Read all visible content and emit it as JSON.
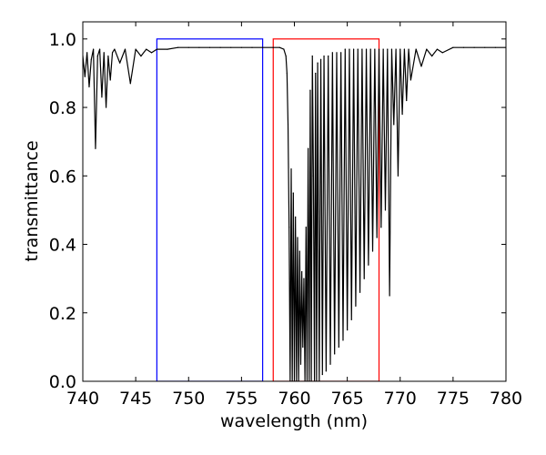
{
  "chart_data": {
    "type": "line",
    "title": "",
    "xlabel": "wavelength (nm)",
    "ylabel": "transmittance",
    "xlim": [
      740,
      780
    ],
    "ylim": [
      0.0,
      1.05
    ],
    "grid": false,
    "x_ticks": [
      740,
      745,
      750,
      755,
      760,
      765,
      770,
      775,
      780
    ],
    "x_tick_labels": [
      "740",
      "745",
      "750",
      "755",
      "760",
      "765",
      "770",
      "775",
      "780"
    ],
    "y_ticks": [
      0.0,
      0.2,
      0.4,
      0.6,
      0.8,
      1.0
    ],
    "y_tick_labels": [
      "0.0",
      "0.2",
      "0.4",
      "0.6",
      "0.8",
      "1.0"
    ],
    "series": [
      {
        "color": "#000000",
        "continuum": 0.975,
        "x": [
          740.0,
          740.2,
          740.4,
          740.6,
          740.8,
          741.0,
          741.2,
          741.4,
          741.6,
          741.8,
          742.0,
          742.2,
          742.4,
          742.6,
          742.8,
          743.0,
          743.5,
          744.0,
          744.5,
          745.0,
          745.5,
          746.0,
          746.5,
          747.0,
          748.0,
          749.0,
          750.0,
          751.0,
          752.0,
          753.0,
          754.0,
          755.0,
          756.0,
          757.0,
          758.0,
          758.6,
          759.0,
          759.2,
          759.3,
          759.4,
          759.5,
          759.6,
          759.7,
          759.8,
          759.9,
          760.0,
          760.1,
          760.2,
          760.3,
          760.4,
          760.5,
          760.6,
          760.7,
          760.8,
          760.9,
          761.0,
          761.1,
          761.2,
          761.3,
          761.4,
          761.5,
          761.6,
          761.7,
          761.8,
          761.9,
          762.0,
          762.1,
          762.2,
          762.35,
          762.5,
          762.65,
          762.8,
          763.0,
          763.2,
          763.4,
          763.6,
          763.8,
          764.0,
          764.2,
          764.4,
          764.6,
          764.8,
          765.0,
          765.2,
          765.4,
          765.6,
          765.8,
          766.0,
          766.2,
          766.4,
          766.6,
          766.8,
          767.0,
          767.2,
          767.4,
          767.6,
          767.8,
          768.0,
          768.2,
          768.4,
          768.6,
          768.8,
          769.0,
          769.2,
          769.4,
          769.6,
          769.8,
          770.0,
          770.2,
          770.4,
          770.6,
          770.8,
          771.0,
          771.5,
          772.0,
          772.5,
          773.0,
          773.5,
          774.0,
          775.0,
          776.0,
          777.0,
          778.0,
          779.0,
          780.0
        ],
        "y": [
          0.95,
          0.89,
          0.96,
          0.86,
          0.94,
          0.97,
          0.68,
          0.95,
          0.97,
          0.83,
          0.96,
          0.8,
          0.95,
          0.88,
          0.96,
          0.97,
          0.93,
          0.97,
          0.87,
          0.97,
          0.95,
          0.97,
          0.96,
          0.97,
          0.97,
          0.975,
          0.975,
          0.975,
          0.975,
          0.975,
          0.975,
          0.975,
          0.975,
          0.975,
          0.975,
          0.975,
          0.97,
          0.95,
          0.9,
          0.75,
          0.45,
          0.0,
          0.62,
          0.0,
          0.55,
          0.0,
          0.48,
          0.0,
          0.42,
          0.0,
          0.38,
          0.05,
          0.32,
          0.1,
          0.3,
          0.0,
          0.45,
          0.0,
          0.68,
          0.0,
          0.85,
          0.0,
          0.95,
          0.6,
          0.0,
          0.9,
          0.0,
          0.93,
          0.0,
          0.94,
          0.02,
          0.95,
          0.03,
          0.95,
          0.05,
          0.96,
          0.08,
          0.96,
          0.1,
          0.96,
          0.12,
          0.97,
          0.15,
          0.97,
          0.18,
          0.97,
          0.22,
          0.97,
          0.26,
          0.97,
          0.3,
          0.97,
          0.34,
          0.97,
          0.38,
          0.97,
          0.42,
          0.97,
          0.45,
          0.97,
          0.5,
          0.97,
          0.25,
          0.97,
          0.75,
          0.97,
          0.6,
          0.97,
          0.78,
          0.97,
          0.82,
          0.97,
          0.88,
          0.97,
          0.92,
          0.97,
          0.95,
          0.97,
          0.96,
          0.975,
          0.975,
          0.975,
          0.975,
          0.975,
          0.975
        ]
      }
    ],
    "rectangles": [
      {
        "color": "#0000ff",
        "x0": 747.0,
        "x1": 757.0,
        "y0": 0.0,
        "y1": 1.0
      },
      {
        "color": "#ff0000",
        "x0": 758.0,
        "x1": 768.0,
        "y0": 0.0,
        "y1": 1.0
      }
    ]
  }
}
